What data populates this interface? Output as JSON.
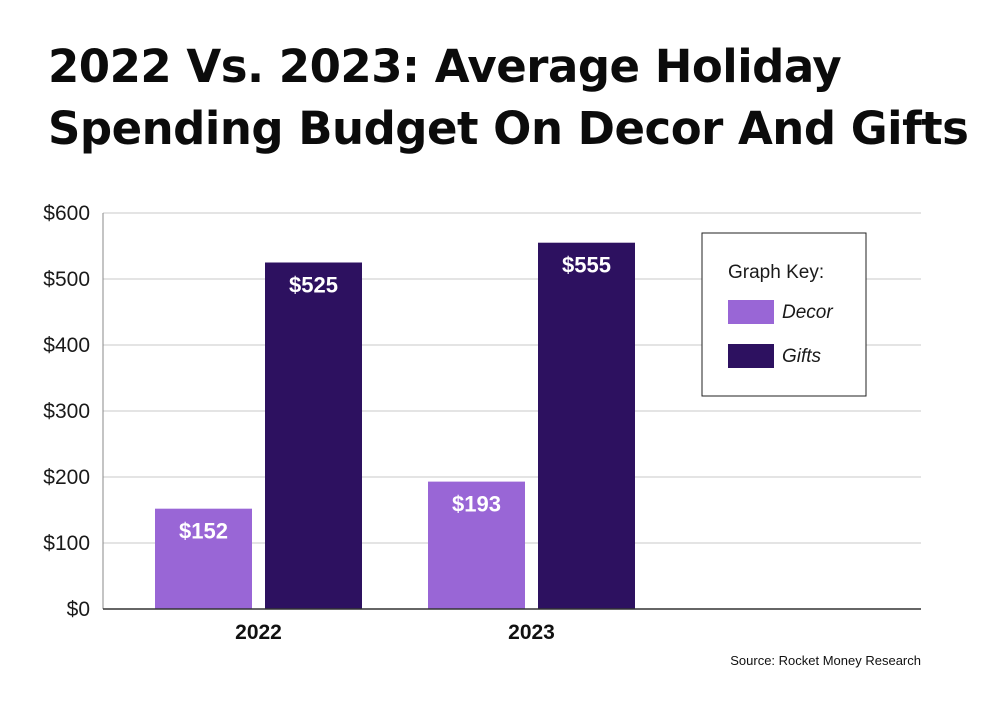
{
  "chart_data": {
    "type": "bar",
    "title_lines": [
      "2022 Vs. 2023: Average Holiday",
      "Spending Budget On Decor And Gifts"
    ],
    "categories": [
      "2022",
      "2023"
    ],
    "series": [
      {
        "name": "Decor",
        "values": [
          152,
          193
        ],
        "labels": [
          "$152",
          "$193"
        ],
        "color": "#9966d6"
      },
      {
        "name": "Gifts",
        "values": [
          525,
          555
        ],
        "labels": [
          "$525",
          "$555"
        ],
        "color": "#2d1160"
      }
    ],
    "ylim": [
      0,
      600
    ],
    "yticks": [
      0,
      100,
      200,
      300,
      400,
      500,
      600
    ],
    "ytick_labels": [
      "$0",
      "$100",
      "$200",
      "$300",
      "$400",
      "$500",
      "$600"
    ],
    "xlabel": "",
    "ylabel": "",
    "grid": "horizontal",
    "legend": {
      "title": "Graph Key:",
      "position": "top-right"
    },
    "source": "Source: Rocket Money Research"
  }
}
